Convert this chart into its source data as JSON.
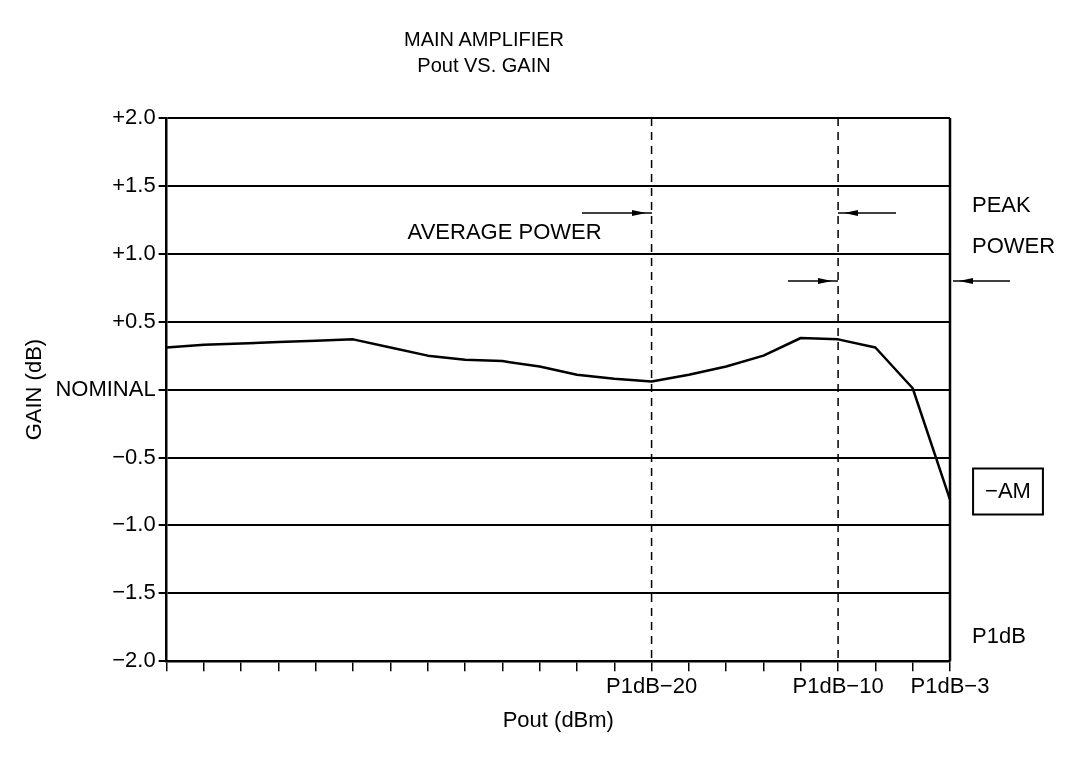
{
  "chart_data": {
    "type": "line",
    "title": "MAIN AMPLIFIER",
    "subtitle": "Pout VS. GAIN",
    "xlabel": "Pout (dBm)",
    "ylabel": "GAIN (dB)",
    "categories": [
      null,
      null,
      null,
      null,
      null,
      null,
      null,
      null,
      null,
      null,
      null,
      null,
      null,
      "P1dB−20",
      null,
      null,
      null,
      null,
      "P1dB−10",
      null,
      null,
      "P1dB−3"
    ],
    "series": [
      {
        "color": "#000000",
        "values": [
          0.31,
          0.33,
          0.34,
          0.35,
          0.36,
          0.37,
          0.31,
          0.25,
          0.22,
          0.21,
          0.17,
          0.11,
          0.08,
          0.06,
          0.11,
          0.17,
          0.25,
          0.38,
          0.37,
          0.31,
          0.01,
          -0.81
        ]
      }
    ],
    "ylim": [
      -2,
      2
    ],
    "yticks": [
      {
        "value": 2,
        "label": "+2.0"
      },
      {
        "value": 1.5,
        "label": "+1.5"
      },
      {
        "value": 1,
        "label": "+1.0"
      },
      {
        "value": 0.5,
        "label": "+0.5"
      },
      {
        "value": 0,
        "label": "NOMINAL"
      },
      {
        "value": -0.5,
        "label": "−0.5"
      },
      {
        "value": -1,
        "label": "−1.0"
      },
      {
        "value": -1.5,
        "label": "−1.5"
      },
      {
        "value": -2,
        "label": "−2.0"
      }
    ],
    "grid": "y",
    "legend": false,
    "marker": "none",
    "line_style": "solid",
    "ref_lines": [
      {
        "axis": "x",
        "value": "P1dB−20",
        "line_style": "dashed",
        "color": "#000000"
      },
      {
        "axis": "x",
        "value": "P1dB−10",
        "line_style": "dashed",
        "color": "#000000"
      }
    ],
    "annotations": [
      {
        "text": "AVERAGE POWER",
        "x": "P1dB−20",
        "y": 1.3
      },
      "PEAK POWER",
      "−AM",
      "P1dB"
    ]
  }
}
